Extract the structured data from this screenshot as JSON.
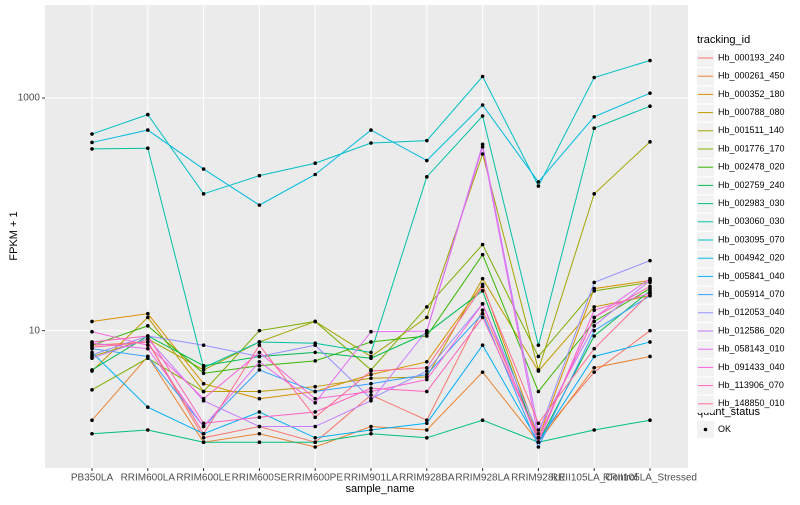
{
  "chart_data": {
    "type": "line",
    "x_label": "sample_name",
    "y_label": "FPKM + 1",
    "log_y": true,
    "grid": true,
    "categories": [
      "PB350LA",
      "RRIM600LA",
      "RRIM600LE",
      "RRIM600SE",
      "RRIM600PE",
      "RRIM901LA",
      "RRIM928BA",
      "RRIM928LA",
      "RRIM928LE",
      "RRII105LA_Control",
      "RRII105LA_Stressed"
    ],
    "ylim": [
      0.66,
      6300
    ],
    "yticks": [
      10,
      1000
    ],
    "legend_title": "tracking_id",
    "legend_position": "right",
    "point_legend_title": "quant_status",
    "point_legend_label": "OK",
    "point_color": "#000000",
    "series": [
      {
        "name": "Hb_000193_240",
        "color": "#F8766D",
        "values": [
          7.5,
          8,
          1.2,
          1.5,
          1.1,
          2.8,
          1.7,
          15,
          1.2,
          4.4,
          10
        ]
      },
      {
        "name": "Hb_000261_450",
        "color": "#EA8331",
        "values": [
          1.7,
          6,
          1.1,
          1.3,
          1.0,
          1.5,
          1.4,
          4.4,
          1.1,
          4.8,
          6
        ]
      },
      {
        "name": "Hb_000352_180",
        "color": "#D89000",
        "values": [
          12,
          14,
          3.5,
          2.6,
          3.0,
          4.2,
          5.4,
          25,
          1.2,
          23,
          27
        ]
      },
      {
        "name": "Hb_000788_080",
        "color": "#C09B00",
        "values": [
          4.5,
          13,
          3.0,
          3.0,
          3.3,
          3.9,
          4.0,
          28,
          4.5,
          16,
          20
        ]
      },
      {
        "name": "Hb_001511_140",
        "color": "#A3A500",
        "values": [
          6,
          8.5,
          4.6,
          8,
          12,
          6,
          13,
          330,
          4.6,
          150,
          420
        ]
      },
      {
        "name": "Hb_001776_170",
        "color": "#7CAE00",
        "values": [
          3.1,
          5.8,
          3.0,
          10,
          12,
          4.6,
          16,
          55,
          6,
          22,
          26
        ]
      },
      {
        "name": "Hb_002478_020",
        "color": "#39B600",
        "values": [
          7.5,
          11,
          4.3,
          5.0,
          5.5,
          8,
          9,
          45,
          3.0,
          12,
          23
        ]
      },
      {
        "name": "Hb_002759_240",
        "color": "#00BB4E",
        "values": [
          4.6,
          9,
          5.0,
          6,
          6.5,
          5.8,
          9.5,
          22,
          1.1,
          9,
          22
        ]
      },
      {
        "name": "Hb_002983_030",
        "color": "#00BF7D",
        "values": [
          1.3,
          1.4,
          1.1,
          1.1,
          1.1,
          1.3,
          1.2,
          1.7,
          1.1,
          1.4,
          1.7
        ]
      },
      {
        "name": "Hb_003060_030",
        "color": "#00C1A3",
        "values": [
          365,
          370,
          4.8,
          8,
          7.8,
          6.5,
          210,
          700,
          7.5,
          550,
          850
        ]
      },
      {
        "name": "Hb_003095_070",
        "color": "#00BFC4",
        "values": [
          490,
          720,
          150,
          215,
          275,
          410,
          430,
          1530,
          175,
          1500,
          2100
        ]
      },
      {
        "name": "Hb_004942_020",
        "color": "#00BAE0",
        "values": [
          415,
          530,
          245,
          120,
          220,
          530,
          290,
          870,
          190,
          690,
          1100
        ]
      },
      {
        "name": "Hb_005841_040",
        "color": "#00B0F6",
        "values": [
          6.5,
          2.2,
          1.3,
          2.0,
          1.2,
          1.4,
          1.6,
          7.5,
          1.1,
          6,
          8
        ]
      },
      {
        "name": "Hb_005914_070",
        "color": "#35A2FF",
        "values": [
          7,
          6,
          1.5,
          4.6,
          3,
          3.5,
          4.2,
          14,
          1.0,
          10,
          20
        ]
      },
      {
        "name": "Hb_012053_040",
        "color": "#9590FF",
        "values": [
          6.2,
          9,
          7.5,
          6,
          7.5,
          2.6,
          4.5,
          17,
          1.3,
          26,
          40
        ]
      },
      {
        "name": "Hb_012586_020",
        "color": "#C77CFF",
        "values": [
          5.8,
          8.5,
          2.5,
          1.5,
          1.5,
          2.5,
          10,
          400,
          1.4,
          11,
          27
        ]
      },
      {
        "name": "Hb_058143_010",
        "color": "#E76BF3",
        "values": [
          7.8,
          7,
          1.5,
          5.4,
          2.4,
          9.8,
          9.9,
          380,
          1.2,
          13,
          28
        ]
      },
      {
        "name": "Hb_091433_040",
        "color": "#FA62DB",
        "values": [
          9.8,
          7.5,
          2.6,
          6.5,
          2.6,
          3.0,
          3.8,
          17,
          1.1,
          15,
          21
        ]
      },
      {
        "name": "Hb_113906_070",
        "color": "#FF62BC",
        "values": [
          8,
          9,
          1.6,
          1.8,
          2.0,
          3.2,
          3.0,
          13,
          1.2,
          13,
          24
        ]
      },
      {
        "name": "Hb_148850_010",
        "color": "#FF6C91",
        "values": [
          7.2,
          8,
          1.3,
          7.5,
          1.8,
          4.5,
          4.8,
          24,
          1.6,
          7,
          21
        ]
      }
    ]
  }
}
